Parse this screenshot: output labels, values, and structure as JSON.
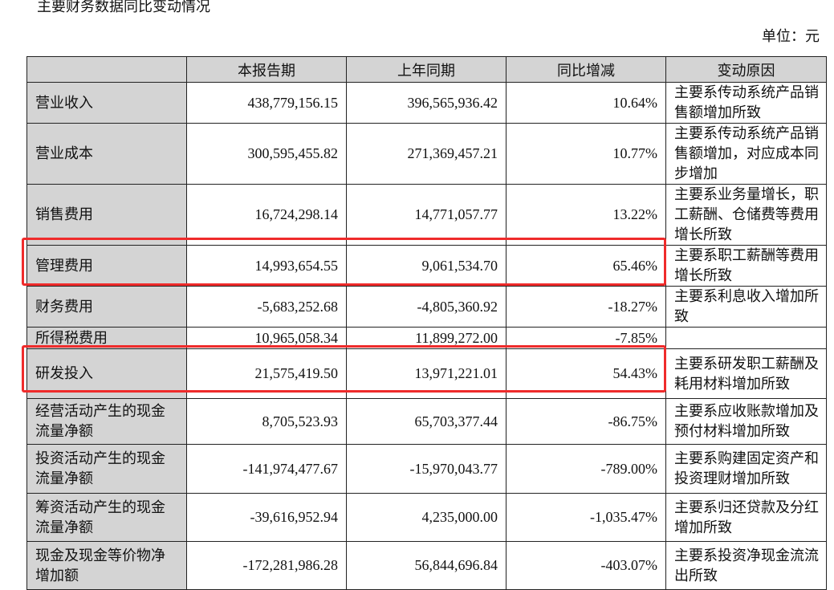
{
  "title": "主要财务数据同比变动情况",
  "unit": "单位：元",
  "columns": [
    "",
    "本报告期",
    "上年同期",
    "同比增减",
    "变动原因"
  ],
  "rows": [
    {
      "label": "营业收入",
      "current": "438,779,156.15",
      "previous": "396,565,936.42",
      "change": "10.64%",
      "reason": "主要系传动系统产品销售额增加所致"
    },
    {
      "label": "营业成本",
      "current": "300,595,455.82",
      "previous": "271,369,457.21",
      "change": "10.77%",
      "reason": "主要系传动系统产品销售额增加，对应成本同步增加"
    },
    {
      "label": "销售费用",
      "current": "16,724,298.14",
      "previous": "14,771,057.77",
      "change": "13.22%",
      "reason": "主要系业务量增长，职工薪酬、仓储费等费用增长所致"
    },
    {
      "label": "管理费用",
      "current": "14,993,654.55",
      "previous": "9,061,534.70",
      "change": "65.46%",
      "reason": "主要系职工薪酬等费用增长所致"
    },
    {
      "label": "财务费用",
      "current": "-5,683,252.68",
      "previous": "-4,805,360.92",
      "change": "-18.27%",
      "reason": "主要系利息收入增加所致"
    },
    {
      "label": "所得税费用",
      "current": "10,965,058.34",
      "previous": "11,899,272.00",
      "change": "-7.85%",
      "reason": ""
    },
    {
      "label": "研发投入",
      "current": "21,575,419.50",
      "previous": "13,971,221.01",
      "change": "54.43%",
      "reason": "主要系研发职工薪酬及耗用材料增加所致"
    },
    {
      "label": "经营活动产生的现金流量净额",
      "current": "8,705,523.93",
      "previous": "65,703,377.44",
      "change": "-86.75%",
      "reason": "主要系应收账款增加及预付材料增加所致"
    },
    {
      "label": "投资活动产生的现金流量净额",
      "current": "-141,974,477.67",
      "previous": "-15,970,043.77",
      "change": "-789.00%",
      "reason": "主要系购建固定资产和投资理财增加所致"
    },
    {
      "label": "筹资活动产生的现金流量净额",
      "current": "-39,616,952.94",
      "previous": "4,235,000.00",
      "change": "-1,035.47%",
      "reason": "主要系归还贷款及分红增加所致"
    },
    {
      "label": "现金及现金等价物净增加额",
      "current": "-172,281,986.28",
      "previous": "56,844,696.84",
      "change": "-403.07%",
      "reason": "主要系投资净现金流流出所致"
    }
  ],
  "colors": {
    "header_bg": "#d4d4d4",
    "highlight": "#ef2b2b",
    "border": "#222222"
  }
}
